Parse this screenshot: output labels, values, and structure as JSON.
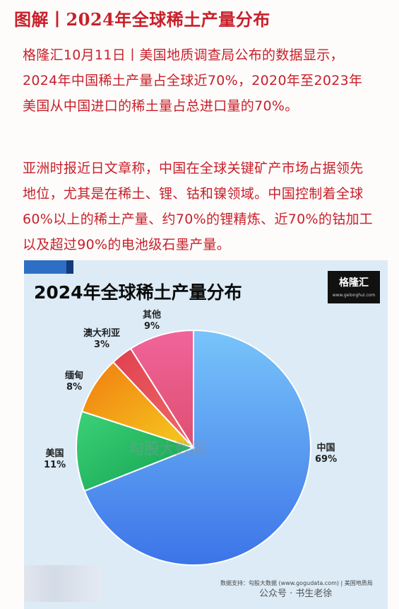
{
  "header": {
    "title": "图解丨2024年全球稀土产量分布"
  },
  "article": {
    "paragraph1": "格隆汇10月11日丨美国地质调查局公布的数据显示，2024年中国稀土产量占全球近70%，2020年至2023年美国从中国进口的稀土量占总进口量的70%。",
    "paragraph2": "亚洲时报近日文章称，中国在全球关键矿产市场占据领先地位，尤其是在稀土、锂、钴和镍领域。中国控制着全球60%以上的稀土产量、约70%的锂精炼、近70%的钴加工以及超过90%的电池级石墨产量。"
  },
  "card": {
    "logo_text": "格隆汇",
    "logo_sub": "www.gelonghui.com",
    "watermark": "勾股大数据",
    "source": "数据支持：勾股大数据 (www.gogudata.com) | 美国地质局",
    "wechat": "公众号 · 书生老徐"
  },
  "chart_data": {
    "type": "pie",
    "title": "2024年全球稀土产量分布",
    "unit": "%",
    "slices": [
      {
        "label": "中国",
        "value": 69,
        "display": "69%",
        "color": "#4c9cf0"
      },
      {
        "label": "美国",
        "value": 11,
        "display": "11%",
        "color": "#22c064"
      },
      {
        "label": "缅甸",
        "value": 8,
        "display": "8%",
        "color": "#f29a16"
      },
      {
        "label": "澳大利亚",
        "value": 3,
        "display": "3%",
        "color": "#e6505a"
      },
      {
        "label": "其他",
        "value": 9,
        "display": "9%",
        "color": "#ea5f96"
      }
    ],
    "start_angle_deg": 0,
    "direction": "clockwise",
    "legend": "none"
  }
}
